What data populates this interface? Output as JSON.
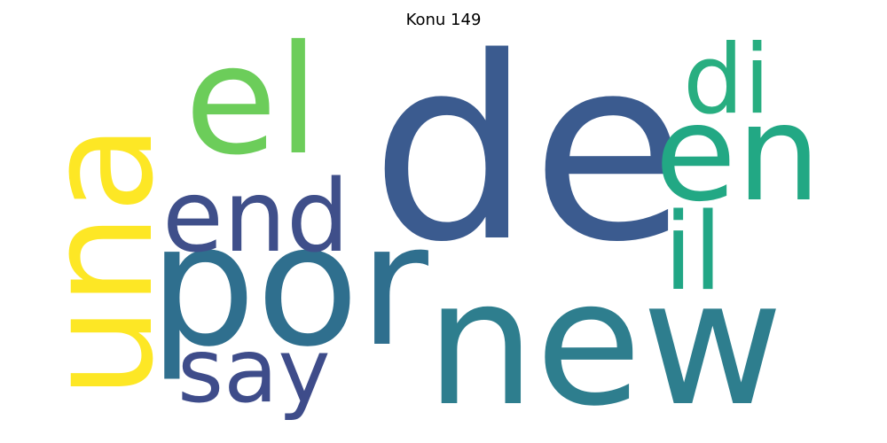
{
  "title": "Konu 149",
  "words": [
    {
      "text": "de",
      "color": "#3b5b8f",
      "orientation": "horizontal"
    },
    {
      "text": "new",
      "color": "#2e7e8e",
      "orientation": "horizontal"
    },
    {
      "text": "por",
      "color": "#2f6f8e",
      "orientation": "horizontal"
    },
    {
      "text": "una",
      "color": "#fde725",
      "orientation": "vertical"
    },
    {
      "text": "el",
      "color": "#6ccd5a",
      "orientation": "horizontal"
    },
    {
      "text": "en",
      "color": "#22a884",
      "orientation": "horizontal"
    },
    {
      "text": "end",
      "color": "#3f4f8a",
      "orientation": "horizontal"
    },
    {
      "text": "di",
      "color": "#28ae80",
      "orientation": "horizontal"
    },
    {
      "text": "il",
      "color": "#21a685",
      "orientation": "vertical"
    },
    {
      "text": "say",
      "color": "#3e4c8a",
      "orientation": "horizontal"
    }
  ]
}
